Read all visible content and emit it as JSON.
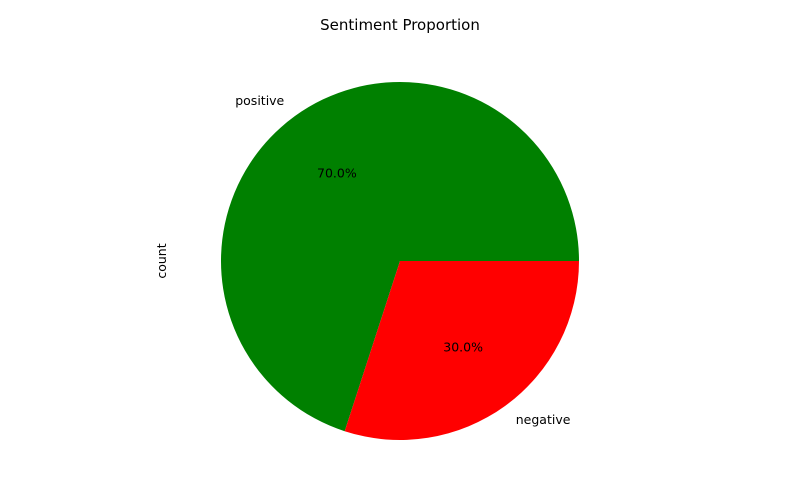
{
  "chart_data": {
    "type": "pie",
    "title": "Sentiment Proportion",
    "ylabel": "count",
    "slices": [
      {
        "label": "positive",
        "value": 70.0,
        "pct_label": "70.0%",
        "color": "#008000"
      },
      {
        "label": "negative",
        "value": 30.0,
        "pct_label": "30.0%",
        "color": "#ff0000"
      }
    ],
    "start_angle_deg": 0,
    "direction": "counterclockwise",
    "grid": false,
    "legend": "none"
  }
}
